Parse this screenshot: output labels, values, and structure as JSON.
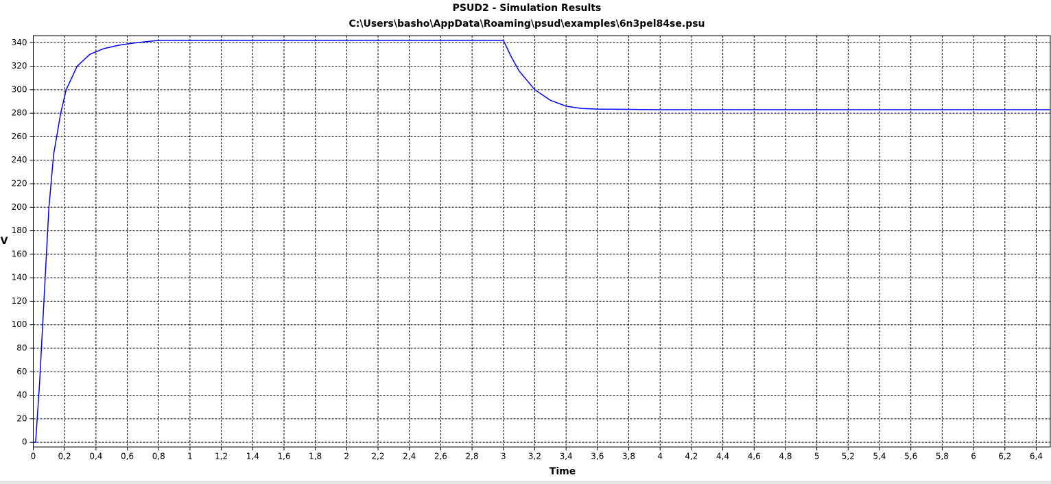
{
  "chart_data": {
    "type": "line",
    "title": "PSUD2 - Simulation Results",
    "subtitle": "C:\\Users\\basho\\AppData\\Roaming\\psud\\examples\\6n3pel84se.psu",
    "x_label": "Time",
    "y_label": "V",
    "x": [
      0,
      0.015,
      0.04,
      0.06,
      0.08,
      0.1,
      0.13,
      0.175,
      0.21,
      0.28,
      0.36,
      0.45,
      0.55,
      0.66,
      0.8,
      1,
      2,
      3,
      3.05,
      3.1,
      3.2,
      3.3,
      3.4,
      3.5,
      3.6,
      4,
      5,
      6.49
    ],
    "values": [
      0,
      0,
      50,
      100,
      150,
      200,
      245,
      280,
      300,
      320,
      330,
      335,
      338,
      340,
      342,
      342,
      342,
      342,
      328,
      316,
      300,
      291,
      286,
      284,
      283.5,
      283,
      283,
      283
    ],
    "color": "#0000ff",
    "xlim": [
      0,
      6.49
    ],
    "ylim": [
      -4,
      346
    ],
    "xticks": [
      0,
      {
        "value": 0.2,
        "label": "0,2"
      },
      {
        "value": 0.4,
        "label": "0,4"
      },
      {
        "value": 0.6,
        "label": "0,6"
      },
      {
        "value": 0.8,
        "label": "0,8"
      },
      1,
      {
        "value": 1.2,
        "label": "1,2"
      },
      {
        "value": 1.4,
        "label": "1,4"
      },
      {
        "value": 1.6,
        "label": "1,6"
      },
      {
        "value": 1.8,
        "label": "1,8"
      },
      2,
      {
        "value": 2.2,
        "label": "2,2"
      },
      {
        "value": 2.4,
        "label": "2,4"
      },
      {
        "value": 2.6,
        "label": "2,6"
      },
      {
        "value": 2.8,
        "label": "2,8"
      },
      3,
      {
        "value": 3.2,
        "label": "3,2"
      },
      {
        "value": 3.4,
        "label": "3,4"
      },
      {
        "value": 3.6,
        "label": "3,6"
      },
      {
        "value": 3.8,
        "label": "3,8"
      },
      4,
      {
        "value": 4.2,
        "label": "4,2"
      },
      {
        "value": 4.4,
        "label": "4,4"
      },
      {
        "value": 4.6,
        "label": "4,6"
      },
      {
        "value": 4.8,
        "label": "4,8"
      },
      5,
      {
        "value": 5.2,
        "label": "5,2"
      },
      {
        "value": 5.4,
        "label": "5,4"
      },
      {
        "value": 5.6,
        "label": "5,6"
      },
      {
        "value": 5.8,
        "label": "5,8"
      },
      6,
      {
        "value": 6.2,
        "label": "6,2"
      },
      {
        "value": 6.4,
        "label": "6,4"
      }
    ],
    "yticks": [
      0,
      20,
      40,
      60,
      80,
      100,
      120,
      140,
      160,
      180,
      200,
      220,
      240,
      260,
      280,
      300,
      320,
      340
    ],
    "grid": true
  }
}
